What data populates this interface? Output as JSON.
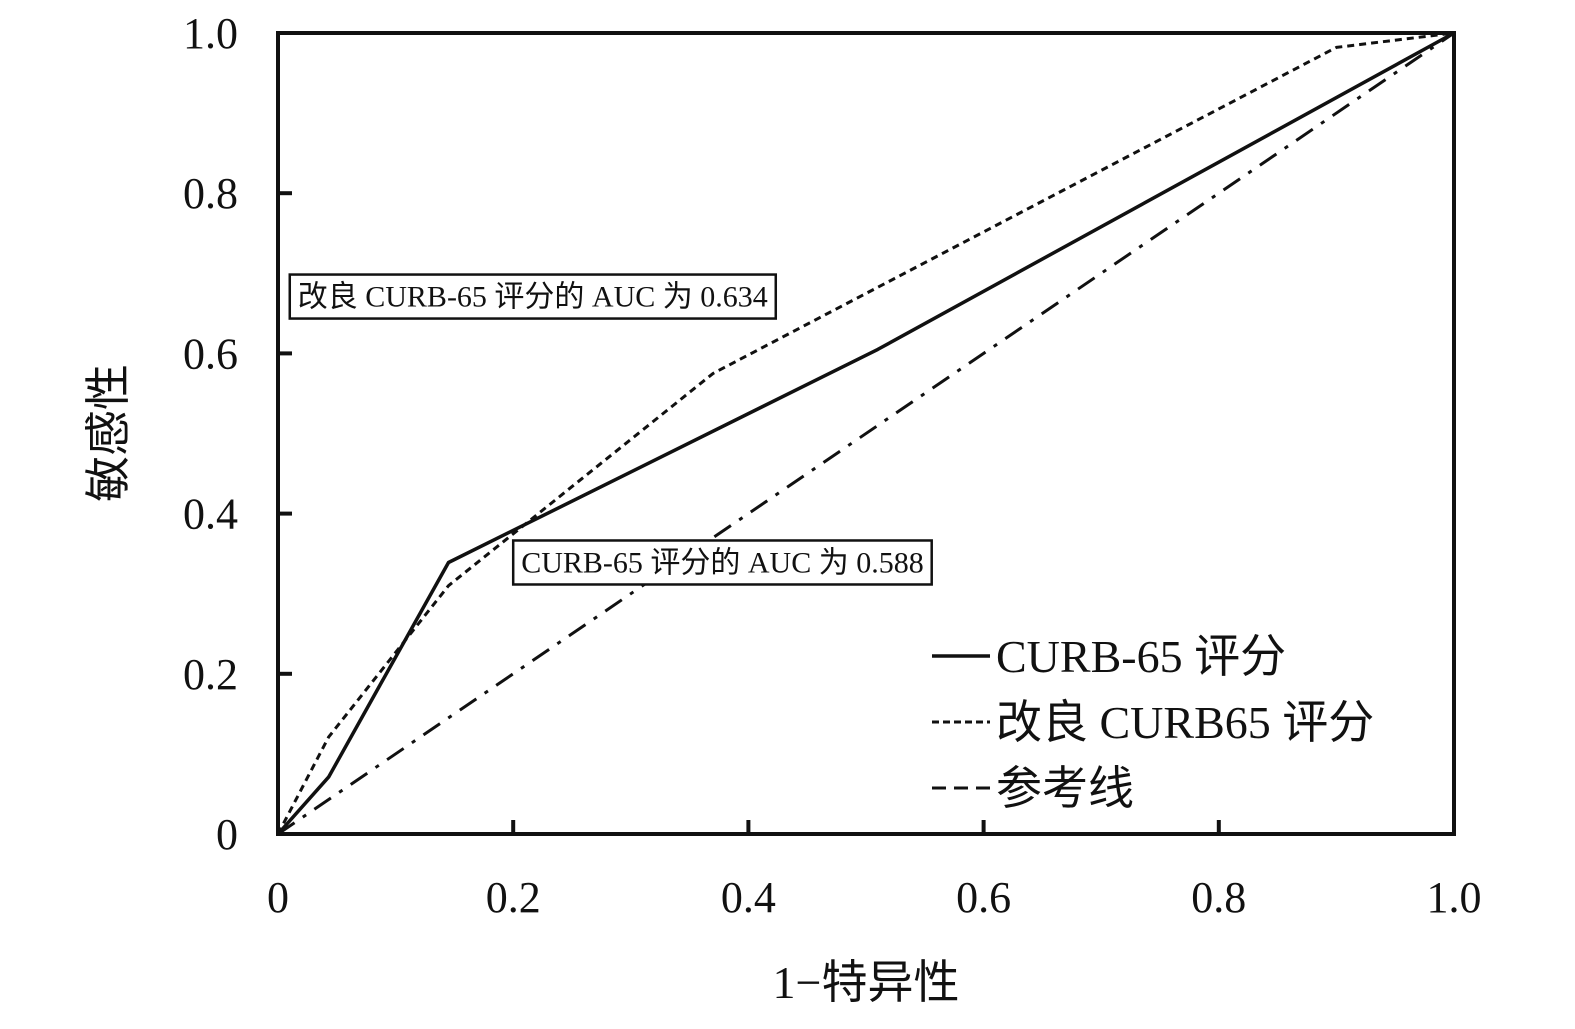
{
  "chart_data": {
    "type": "line",
    "title": "",
    "xlabel": "1−特异性",
    "ylabel": "敏感性",
    "xlim": [
      0,
      1.0
    ],
    "ylim": [
      0,
      1.0
    ],
    "x_ticks": [
      {
        "value": 0,
        "label": "0"
      },
      {
        "value": 0.2,
        "label": "0.2"
      },
      {
        "value": 0.4,
        "label": "0.4"
      },
      {
        "value": 0.6,
        "label": "0.6"
      },
      {
        "value": 0.8,
        "label": "0.8"
      },
      {
        "value": 1.0,
        "label": "1.0"
      }
    ],
    "y_ticks": [
      {
        "value": 0,
        "label": "0"
      },
      {
        "value": 0.2,
        "label": "0.2"
      },
      {
        "value": 0.4,
        "label": "0.4"
      },
      {
        "value": 0.6,
        "label": "0.6"
      },
      {
        "value": 0.8,
        "label": "0.8"
      },
      {
        "value": 1.0,
        "label": "1.0"
      }
    ],
    "grid": false,
    "legend_position": "bottom-right",
    "series": [
      {
        "name": "CURB-65 评分",
        "style": "solid",
        "points": [
          [
            0,
            0
          ],
          [
            0.043,
            0.071
          ],
          [
            0.145,
            0.339
          ],
          [
            0.51,
            0.605
          ],
          [
            1.0,
            1.0
          ]
        ]
      },
      {
        "name": "改良 CURB65 评分",
        "style": "dotted",
        "points": [
          [
            0,
            0
          ],
          [
            0.043,
            0.121
          ],
          [
            0.145,
            0.31
          ],
          [
            0.37,
            0.575
          ],
          [
            0.9,
            0.982
          ],
          [
            1.0,
            1.0
          ]
        ]
      },
      {
        "name": "参考线",
        "style": "dashed",
        "points": [
          [
            0,
            0
          ],
          [
            1.0,
            1.0
          ]
        ]
      }
    ],
    "annotations": [
      {
        "text": "改良 CURB-65 评分的 AUC 为 0.634",
        "anchor": [
          0.01,
          0.651
        ]
      },
      {
        "text": "CURB-65 评分的 AUC 为 0.588",
        "anchor": [
          0.2,
          0.319
        ]
      }
    ]
  }
}
